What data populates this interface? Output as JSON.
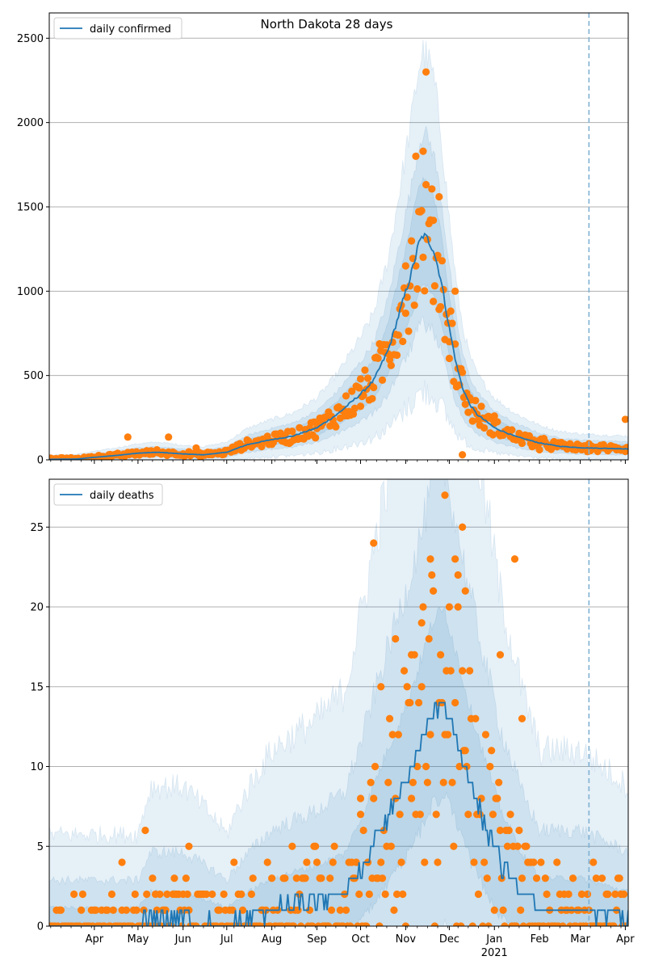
{
  "chart_data": [
    {
      "type": "line",
      "title": "North Dakota 28 days",
      "legend": {
        "label": "daily confirmed",
        "placement": "upper-left"
      },
      "grid": "horizontal",
      "ylim": [
        0,
        2650
      ],
      "y_ticks": [
        0,
        500,
        1000,
        1500,
        2000,
        2500
      ],
      "y_tick_labels": [
        "0",
        "500",
        "1000",
        "1500",
        "2000",
        "2500"
      ],
      "x_range": [
        "2020-03-01",
        "2021-04-03"
      ],
      "month_ticks": [
        "2020-04-01",
        "2020-05-01",
        "2020-06-01",
        "2020-07-01",
        "2020-08-01",
        "2020-09-01",
        "2020-10-01",
        "2020-11-01",
        "2020-12-01",
        "2021-01-01",
        "2021-02-01",
        "2021-03-01",
        "2021-04-01"
      ],
      "month_labels": [],
      "year_label": "",
      "forecast_start": "2021-03-07",
      "colors": {
        "line": "#1f77b4",
        "points": "#ff7f0e",
        "band": "#1f77b4",
        "forecast": "#7fb1d4"
      },
      "trend_knots": [
        [
          "2020-03-01",
          3
        ],
        [
          "2020-03-20",
          5
        ],
        [
          "2020-04-01",
          15
        ],
        [
          "2020-04-15",
          25
        ],
        [
          "2020-05-01",
          40
        ],
        [
          "2020-05-15",
          45
        ],
        [
          "2020-06-01",
          35
        ],
        [
          "2020-06-15",
          30
        ],
        [
          "2020-07-01",
          45
        ],
        [
          "2020-07-15",
          90
        ],
        [
          "2020-08-01",
          120
        ],
        [
          "2020-08-15",
          140
        ],
        [
          "2020-09-01",
          190
        ],
        [
          "2020-09-15",
          270
        ],
        [
          "2020-10-01",
          390
        ],
        [
          "2020-10-10",
          470
        ],
        [
          "2020-10-20",
          650
        ],
        [
          "2020-10-28",
          880
        ],
        [
          "2020-11-05",
          1110
        ],
        [
          "2020-11-10",
          1280
        ],
        [
          "2020-11-13",
          1330
        ],
        [
          "2020-11-16",
          1310
        ],
        [
          "2020-11-20",
          1250
        ],
        [
          "2020-11-25",
          1080
        ],
        [
          "2020-12-01",
          780
        ],
        [
          "2020-12-06",
          560
        ],
        [
          "2020-12-10",
          430
        ],
        [
          "2020-12-15",
          330
        ],
        [
          "2020-12-20",
          270
        ],
        [
          "2021-01-01",
          190
        ],
        [
          "2021-01-15",
          140
        ],
        [
          "2021-02-01",
          100
        ],
        [
          "2021-02-15",
          80
        ],
        [
          "2021-03-01",
          72
        ],
        [
          "2021-03-07",
          70
        ],
        [
          "2021-03-20",
          68
        ],
        [
          "2021-04-03",
          65
        ]
      ],
      "band_widths": [
        0.25,
        0.45,
        0.8
      ],
      "points_sample": [
        [
          "2020-03-15",
          5
        ],
        [
          "2020-04-10",
          20
        ],
        [
          "2020-04-24",
          135
        ],
        [
          "2020-05-22",
          135
        ],
        [
          "2020-06-10",
          70
        ],
        [
          "2020-08-01",
          110
        ],
        [
          "2020-09-01",
          190
        ],
        [
          "2020-10-01",
          480
        ],
        [
          "2020-10-15",
          680
        ],
        [
          "2020-11-01",
          1150
        ],
        [
          "2020-11-08",
          1800
        ],
        [
          "2020-11-13",
          1830
        ],
        [
          "2020-11-15",
          2300
        ],
        [
          "2020-11-20",
          1420
        ],
        [
          "2020-11-24",
          1560
        ],
        [
          "2020-12-01",
          700
        ],
        [
          "2020-12-05",
          1000
        ],
        [
          "2020-12-10",
          30
        ],
        [
          "2021-01-01",
          260
        ],
        [
          "2021-02-01",
          60
        ],
        [
          "2021-03-01",
          70
        ],
        [
          "2021-04-01",
          240
        ]
      ]
    },
    {
      "type": "line",
      "title": "",
      "legend": {
        "label": "daily deaths",
        "placement": "upper-left"
      },
      "grid": "horizontal",
      "ylim": [
        0,
        28
      ],
      "y_ticks": [
        0,
        5,
        10,
        15,
        20,
        25
      ],
      "y_tick_labels": [
        "0",
        "5",
        "10",
        "15",
        "20",
        "25"
      ],
      "x_range": [
        "2020-03-01",
        "2021-04-03"
      ],
      "month_ticks": [
        "2020-04-01",
        "2020-05-01",
        "2020-06-01",
        "2020-07-01",
        "2020-08-01",
        "2020-09-01",
        "2020-10-01",
        "2020-11-01",
        "2020-12-01",
        "2021-01-01",
        "2021-02-01",
        "2021-03-01",
        "2021-04-01"
      ],
      "month_labels": [
        "Apr",
        "May",
        "Jun",
        "Jul",
        "Aug",
        "Sep",
        "Oct",
        "Nov",
        "Dec",
        "Jan",
        "Feb",
        "Mar",
        "Apr"
      ],
      "year_label": "2021",
      "forecast_start": "2021-03-07",
      "colors": {
        "line": "#1f77b4",
        "points": "#ff7f0e",
        "band": "#1f77b4",
        "forecast": "#7fb1d4"
      },
      "trend_knots": [
        [
          "2020-03-01",
          0
        ],
        [
          "2020-05-01",
          0
        ],
        [
          "2020-05-10",
          0.5
        ],
        [
          "2020-06-01",
          0.5
        ],
        [
          "2020-07-01",
          0
        ],
        [
          "2020-08-01",
          1
        ],
        [
          "2020-09-01",
          1.5
        ],
        [
          "2020-09-20",
          2
        ],
        [
          "2020-10-01",
          3.5
        ],
        [
          "2020-10-15",
          6
        ],
        [
          "2020-11-01",
          9
        ],
        [
          "2020-11-10",
          11
        ],
        [
          "2020-11-20",
          13.5
        ],
        [
          "2020-11-28",
          14
        ],
        [
          "2020-12-05",
          12
        ],
        [
          "2020-12-15",
          9
        ],
        [
          "2020-12-25",
          6.5
        ],
        [
          "2021-01-05",
          4
        ],
        [
          "2021-01-20",
          2
        ],
        [
          "2021-02-01",
          1
        ],
        [
          "2021-02-15",
          1
        ],
        [
          "2021-03-01",
          1
        ],
        [
          "2021-04-03",
          0.5
        ]
      ],
      "band_widths": [
        0.6,
        1.5,
        3.0
      ],
      "points_sample": [
        [
          "2020-04-20",
          4
        ],
        [
          "2020-05-06",
          6
        ],
        [
          "2020-06-05",
          5
        ],
        [
          "2020-07-06",
          4
        ],
        [
          "2020-08-15",
          5
        ],
        [
          "2020-10-01",
          8
        ],
        [
          "2020-10-10",
          24
        ],
        [
          "2020-10-15",
          15
        ],
        [
          "2020-10-25",
          18
        ],
        [
          "2020-11-05",
          17
        ],
        [
          "2020-11-12",
          19
        ],
        [
          "2020-11-18",
          23
        ],
        [
          "2020-11-28",
          27
        ],
        [
          "2020-12-05",
          23
        ],
        [
          "2020-12-07",
          22
        ],
        [
          "2020-12-10",
          25
        ],
        [
          "2020-12-12",
          21
        ],
        [
          "2021-01-05",
          17
        ],
        [
          "2021-01-15",
          23
        ],
        [
          "2021-01-20",
          13
        ],
        [
          "2021-03-10",
          4
        ]
      ]
    }
  ]
}
